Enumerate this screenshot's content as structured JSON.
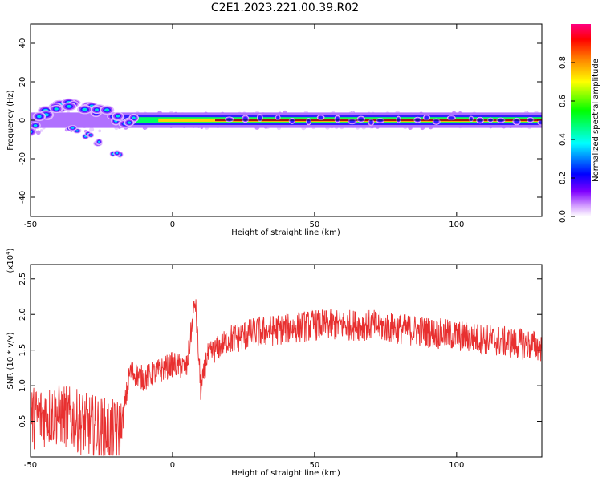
{
  "title": "C2E1.2023.221.00.39.R02",
  "chart_data": [
    {
      "type": "heatmap",
      "xlabel": "Height of straight line (km)",
      "ylabel": "Frequency (Hz)",
      "xlim": [
        -50,
        130
      ],
      "ylim": [
        -50,
        50
      ],
      "xticks": [
        -50,
        0,
        50,
        100
      ],
      "yticks": [
        -40,
        -20,
        0,
        20,
        40
      ],
      "colorbar": {
        "label": "Normalized spectral amplitude",
        "range": [
          0,
          1
        ],
        "ticks": [
          "0.0",
          "0.2",
          "0.4",
          "0.6",
          "0.8"
        ],
        "colors": [
          "#ffffff",
          "#d8a8ff",
          "#8000ff",
          "#0000ff",
          "#00ffff",
          "#00ff00",
          "#ffff00",
          "#ff8000",
          "#ff0000",
          "#ff0080"
        ]
      },
      "features": [
        {
          "name": "main band",
          "x_start": -50,
          "x_end": 130,
          "center_freq": 0,
          "amplitude": 0.95
        },
        {
          "name": "upper branch",
          "points": [
            [
              -50,
              -5
            ],
            [
              -45,
              4
            ],
            [
              -40,
              6
            ],
            [
              -35,
              8
            ],
            [
              -30,
              6
            ],
            [
              -25,
              4
            ],
            [
              -20,
              2
            ],
            [
              -15,
              0
            ]
          ]
        },
        {
          "name": "lower branch",
          "points": [
            [
              -35,
              -5
            ],
            [
              -30,
              -8
            ],
            [
              -25,
              -12
            ],
            [
              -20,
              -17
            ]
          ]
        }
      ]
    },
    {
      "type": "line",
      "xlabel": "Height of straight line (km)",
      "ylabel": "SNR (10 * v/v)",
      "yscale_label": "(x10",
      "yscale_exp": "4",
      "xlim": [
        -50,
        130
      ],
      "ylim": [
        0,
        27000
      ],
      "xticks": [
        -50,
        0,
        50,
        100
      ],
      "yticks": [
        "0.5",
        "1.0",
        "1.5",
        "2.0",
        "2.5"
      ],
      "ytick_values": [
        5000,
        10000,
        15000,
        20000,
        25000
      ],
      "color": "#e83030",
      "trend_x": [
        -50,
        -40,
        -30,
        -20,
        -18,
        -15,
        -10,
        -5,
        0,
        5,
        8,
        10,
        12,
        15,
        20,
        30,
        40,
        50,
        60,
        70,
        80,
        90,
        100,
        110,
        120,
        130
      ],
      "trend_y": [
        5500,
        6000,
        4500,
        3500,
        4000,
        12000,
        11000,
        12000,
        13000,
        12500,
        22000,
        9000,
        14000,
        15000,
        16500,
        17500,
        18000,
        18500,
        18500,
        18500,
        18000,
        17500,
        17000,
        16500,
        16000,
        15500
      ]
    }
  ]
}
